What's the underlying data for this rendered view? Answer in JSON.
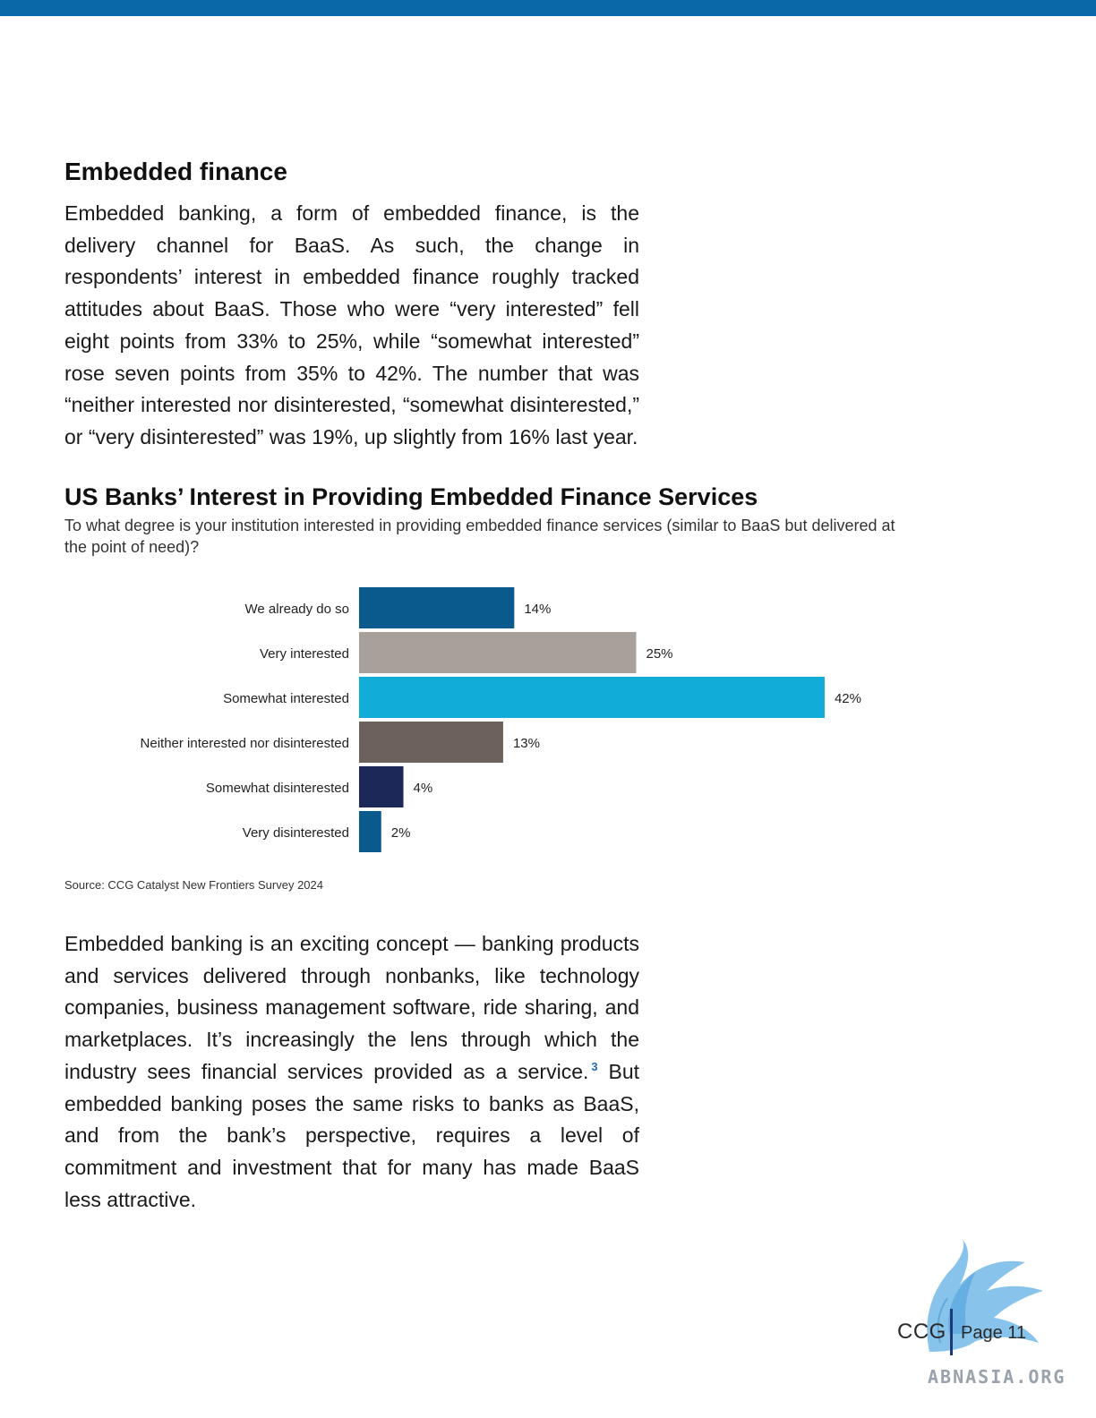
{
  "section": {
    "heading": "Embedded finance",
    "paragraph_1": "Embedded banking, a form of embedded finance, is the delivery channel for BaaS. As such, the change in respondents’ interest in embedded finance roughly tracked attitudes about BaaS. Those who were “very interested” fell eight points from 33% to 25%, while “somewhat interested” rose seven points from 35% to 42%. The number that was “neither interested nor disinterested, “somewhat disinterested,” or “very disinterested” was 19%, up slightly from 16% last year.",
    "paragraph_2": "Embedded banking is an exciting concept — banking products and services delivered through nonbanks, like technology companies, business management software, ride sharing, and marketplaces. It’s increasingly the lens through which the industry sees financial services provided as a service.",
    "footnote_ref": "3",
    "paragraph_2_cont": "But embedded banking poses the same risks to banks as BaaS, and from the bank’s perspective, requires a level of commitment and investment that for many has made BaaS less attractive."
  },
  "chart_data": {
    "type": "bar",
    "orientation": "horizontal",
    "title": "US Banks’ Interest in Providing Embedded Finance Services",
    "subtitle": "To what degree is your institution interested in providing embedded finance services (similar to BaaS but delivered at the point of need)?",
    "categories": [
      "We already do so",
      "Very interested",
      "Somewhat interested",
      "Neither interested nor disinterested",
      "Somewhat disinterested",
      "Very disinterested"
    ],
    "values": [
      14,
      25,
      42,
      13,
      4,
      2
    ],
    "value_labels": [
      "14%",
      "25%",
      "42%",
      "13%",
      "4%",
      "2%"
    ],
    "colors": [
      "#0b5a8e",
      "#a8a09b",
      "#12acd9",
      "#6d625b",
      "#1c2958",
      "#0b5a8e"
    ],
    "unit": "%",
    "grid": false,
    "legend": "none",
    "source": "Source: CCG Catalyst New Frontiers Survey 2024"
  },
  "footer": {
    "brand": "CCG",
    "page_label": "Page 11",
    "watermark": "ABNASIA.ORG"
  },
  "colors": {
    "top_bar": "#0a67a8",
    "logo_art": "#6fb6e6"
  }
}
